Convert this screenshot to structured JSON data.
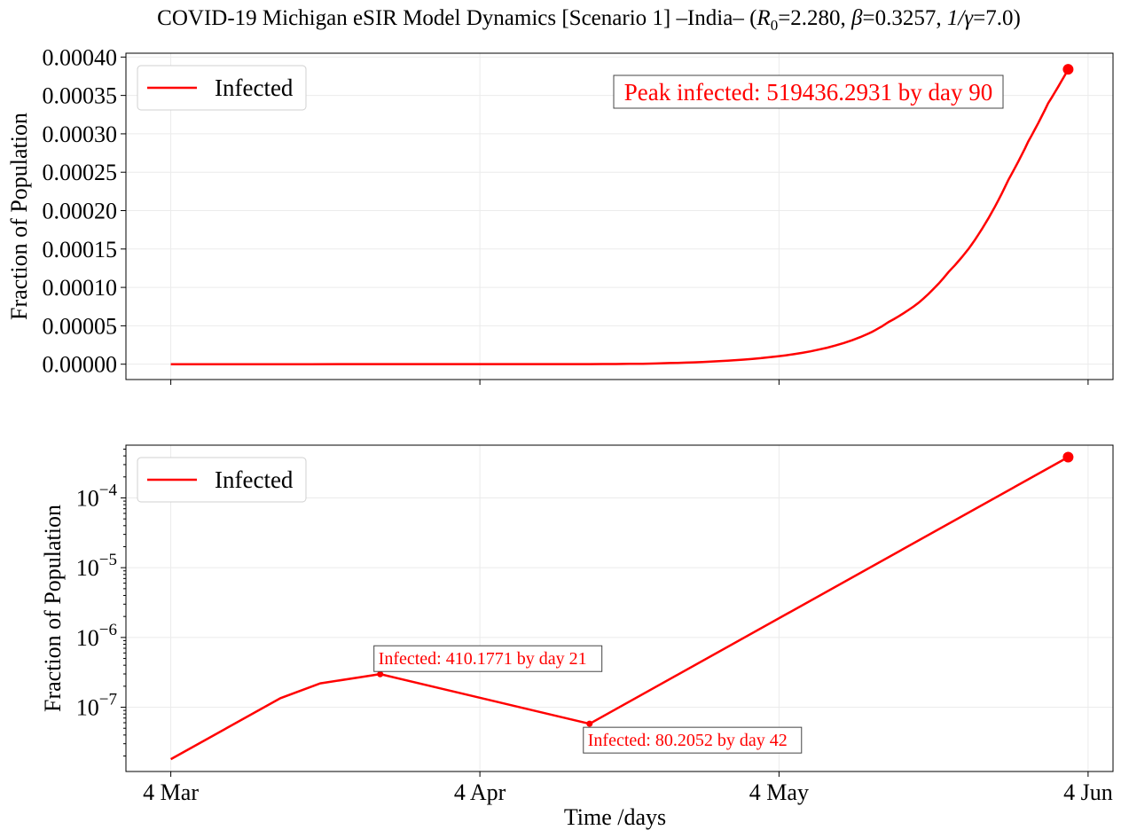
{
  "figure": {
    "title_prefix": "COVID-19 Michigan eSIR Model Dynamics [Scenario 1] –India– (",
    "title_params": [
      {
        "sym": "R",
        "sub": "0",
        "val": "=2.280, "
      },
      {
        "sym": "β",
        "sub": "",
        "val": "=0.3257, "
      },
      {
        "sym": "1/γ",
        "sub": "",
        "val": "=7.0)"
      }
    ]
  },
  "chart_data": [
    {
      "type": "line",
      "scale": "linear",
      "ylabel": "Fraction of Population",
      "xlabel": "",
      "x_dates": [
        "2020-03-04",
        "2020-04-04",
        "2020-05-04",
        "2020-06-04"
      ],
      "xtick_labels": [
        "4 Mar",
        "4 Apr",
        "4 May",
        "4 Jun"
      ],
      "x_range_days": [
        -4.5,
        94.5
      ],
      "ylim": [
        -2e-05,
        0.000405
      ],
      "yticks": [
        0.0,
        5e-05,
        0.0001,
        0.00015,
        0.0002,
        0.00025,
        0.0003,
        0.00035,
        0.0004
      ],
      "ytick_labels": [
        "0.00000",
        "0.00005",
        "0.00010",
        "0.00015",
        "0.00020",
        "0.00025",
        "0.00030",
        "0.00035",
        "0.00040"
      ],
      "grid": true,
      "legend": {
        "position": "top-left",
        "entries": [
          "Infected"
        ]
      },
      "series": [
        {
          "name": "Infected",
          "color": "#ff0000",
          "days": [
            0,
            42,
            50,
            55,
            60,
            65,
            70,
            72,
            75,
            78,
            80,
            82,
            84,
            86,
            88,
            90
          ],
          "values": [
            0.0,
            1e-07,
            1.5e-06,
            4e-06,
            9e-06,
            1.9e-05,
            4e-05,
            5.5e-05,
            8e-05,
            0.00012,
            0.00015,
            0.00019,
            0.00024,
            0.00029,
            0.00034,
            0.000384
          ]
        }
      ],
      "marker": {
        "day": 90,
        "value": 0.000384
      },
      "annotation": "Peak infected: 519436.2931 by day 90"
    },
    {
      "type": "line",
      "scale": "log",
      "ylabel": "Fraction of Population",
      "xlabel": "Time /days",
      "x_dates": [
        "2020-03-04",
        "2020-04-04",
        "2020-05-04",
        "2020-06-04"
      ],
      "xtick_labels": [
        "4 Mar",
        "4 Apr",
        "4 May",
        "4 Jun"
      ],
      "x_range_days": [
        -4.5,
        94.5
      ],
      "ylim": [
        1.2e-08,
        0.00057
      ],
      "yticks": [
        1e-07,
        1e-06,
        1e-05,
        0.0001
      ],
      "ytick_labels": [
        {
          "base": "10",
          "exp": "−7"
        },
        {
          "base": "10",
          "exp": "−6"
        },
        {
          "base": "10",
          "exp": "−5"
        },
        {
          "base": "10",
          "exp": "−4"
        }
      ],
      "grid": true,
      "legend": {
        "position": "top-left",
        "entries": [
          "Infected"
        ]
      },
      "series": [
        {
          "name": "Infected",
          "color": "#ff0000",
          "days": [
            0,
            11,
            15,
            21,
            42,
            90
          ],
          "values": [
            1.8e-08,
            1.35e-07,
            2.2e-07,
            2.98e-07,
            5.8e-08,
            0.000384
          ]
        }
      ],
      "markers": [
        {
          "day": 90,
          "value": 0.000384
        }
      ],
      "minor_markers": [
        {
          "day": 21,
          "value": 2.98e-07
        },
        {
          "day": 42,
          "value": 5.8e-08
        }
      ],
      "annotations": [
        {
          "text": "Infected: 410.1771 by day 21",
          "day": 21,
          "value": 2.98e-07,
          "placement": "above"
        },
        {
          "text": "Infected: 80.2052 by day 42",
          "day": 42,
          "value": 5.8e-08,
          "placement": "below"
        }
      ]
    }
  ]
}
